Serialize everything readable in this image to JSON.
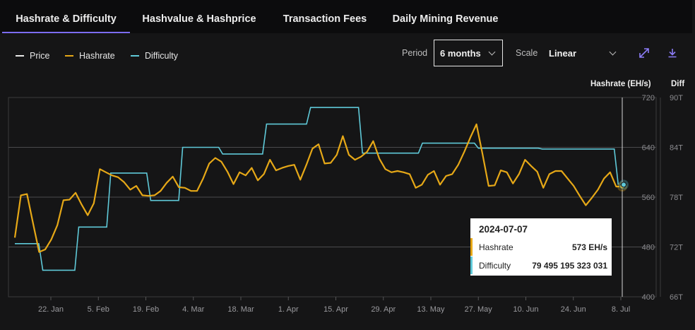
{
  "tabs": [
    {
      "label": "Hashrate & Difficulty",
      "active": true
    },
    {
      "label": "Hashvalue & Hashprice",
      "active": false
    },
    {
      "label": "Transaction Fees",
      "active": false
    },
    {
      "label": "Daily Mining Revenue",
      "active": false
    }
  ],
  "legend": [
    {
      "label": "Price",
      "color": "#e8e8e8"
    },
    {
      "label": "Hashrate",
      "color": "#e6a817"
    },
    {
      "label": "Difficulty",
      "color": "#5fc9d8"
    }
  ],
  "controls": {
    "period_label": "Period",
    "period_value": "6 months",
    "scale_label": "Scale",
    "scale_value": "Linear",
    "expand_icon": "expand-arrows-icon",
    "download_icon": "download-icon"
  },
  "tooltip": {
    "date": "2024-07-07",
    "rows": [
      {
        "label": "Hashrate",
        "value": "573 EH/s",
        "color": "#e6a817"
      },
      {
        "label": "Difficulty",
        "value": "79 495 195 323 031",
        "color": "#5fc9d8"
      }
    ]
  },
  "chart_data": {
    "type": "line",
    "x_tick_labels": [
      "22. Jan",
      "5. Feb",
      "19. Feb",
      "4. Mar",
      "18. Mar",
      "1. Apr",
      "15. Apr",
      "29. Apr",
      "13. May",
      "27. May",
      "10. Jun",
      "24. Jun",
      "8. Jul"
    ],
    "left_axis": {
      "title": "Hashrate (EH/s)",
      "ticks": [
        "720",
        "640",
        "560",
        "480",
        "400"
      ],
      "range": [
        400,
        720
      ]
    },
    "right_axis": {
      "title": "Diff",
      "ticks": [
        "90T",
        "84T",
        "78T",
        "72T",
        "66T"
      ],
      "range": [
        66,
        90
      ]
    },
    "grid": true,
    "series": [
      {
        "name": "Hashrate",
        "color": "#e6a817",
        "values": [
          495,
          563,
          565,
          518,
          472,
          476,
          492,
          515,
          555,
          556,
          567,
          548,
          531,
          550,
          605,
          600,
          595,
          592,
          584,
          572,
          578,
          563,
          562,
          563,
          570,
          583,
          593,
          576,
          575,
          570,
          570,
          590,
          614,
          623,
          617,
          601,
          581,
          600,
          595,
          607,
          587,
          597,
          620,
          603,
          607,
          610,
          612,
          588,
          612,
          638,
          645,
          614,
          615,
          628,
          658,
          628,
          620,
          625,
          633,
          650,
          622,
          605,
          600,
          602,
          600,
          597,
          575,
          580,
          596,
          602,
          580,
          594,
          597,
          612,
          633,
          656,
          677,
          629,
          578,
          579,
          603,
          600,
          582,
          597,
          620,
          610,
          601,
          575,
          597,
          602,
          602,
          590,
          578,
          562,
          547,
          559,
          572,
          590,
          600,
          577,
          577
        ]
      },
      {
        "name": "Difficulty",
        "color": "#5fc9d8",
        "steps": [
          [
            0,
            72.4
          ],
          [
            6,
            72.4
          ],
          [
            7,
            69.2
          ],
          [
            15,
            69.2
          ],
          [
            16,
            74.4
          ],
          [
            23,
            74.4
          ],
          [
            24,
            80.9
          ],
          [
            33,
            80.9
          ],
          [
            34,
            77.6
          ],
          [
            41,
            77.6
          ],
          [
            42,
            84.0
          ],
          [
            51,
            84.0
          ],
          [
            52,
            83.2
          ],
          [
            62,
            83.2
          ],
          [
            63,
            86.8
          ],
          [
            73,
            86.8
          ],
          [
            74,
            88.8
          ],
          [
            86,
            88.8
          ],
          [
            87,
            83.3
          ],
          [
            101,
            83.3
          ],
          [
            102,
            84.5
          ],
          [
            115,
            84.5
          ],
          [
            116,
            83.9
          ],
          [
            131,
            83.9
          ],
          [
            132,
            83.8
          ],
          [
            150,
            83.8
          ],
          [
            151,
            79.5
          ]
        ],
        "x_max": 152
      }
    ],
    "crosshair_date": "2024-07-07"
  }
}
